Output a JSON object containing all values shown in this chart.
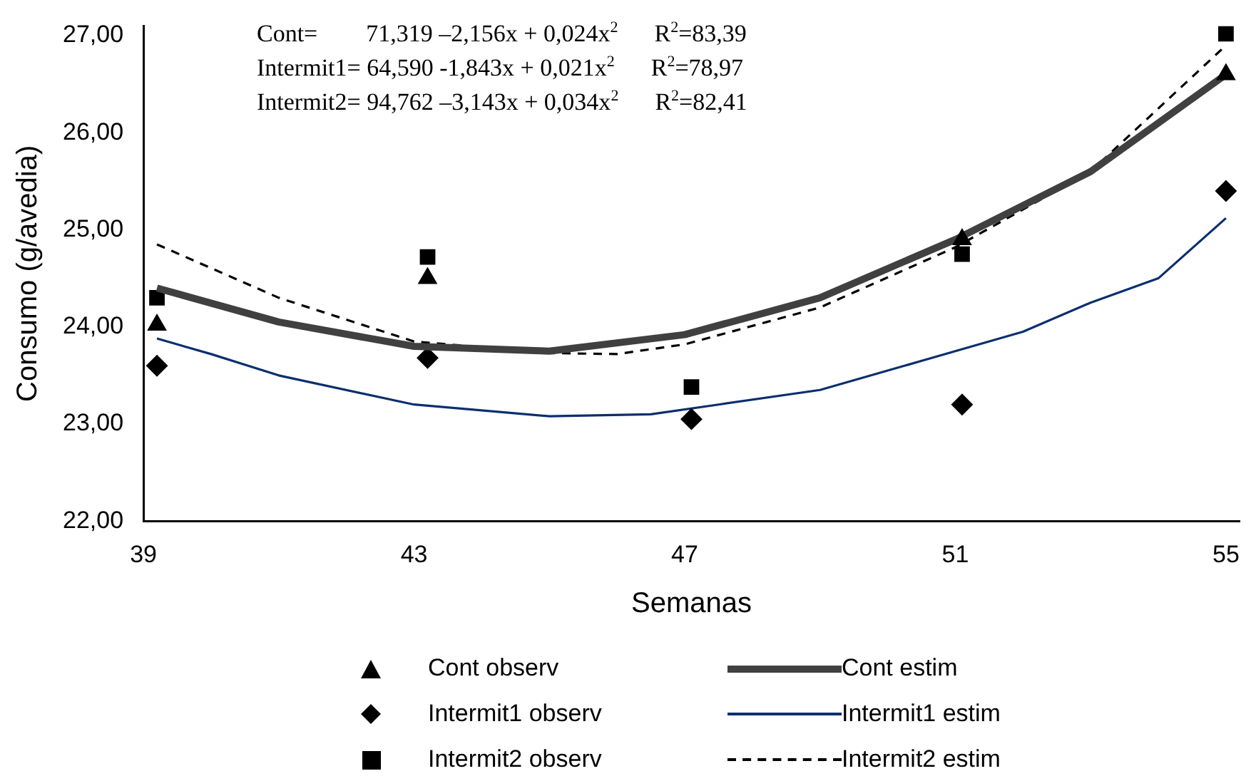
{
  "chart_data": {
    "type": "scatter",
    "xlabel": "Semanas",
    "ylabel": "Consumo (g/avedia)",
    "xlim": [
      39,
      55.2
    ],
    "xticks": [
      39,
      43,
      47,
      51,
      55
    ],
    "ylim": [
      22,
      27.1
    ],
    "yticks": [
      {
        "value": 22,
        "label": "22,00"
      },
      {
        "value": 23,
        "label": "23,00"
      },
      {
        "value": 24,
        "label": "24,00"
      },
      {
        "value": 25,
        "label": "25,00"
      },
      {
        "value": 26,
        "label": "26,00"
      },
      {
        "value": 27,
        "label": "27,00"
      }
    ],
    "grid": false,
    "legend": "bottom",
    "annotations": [
      "Cont=        71,319 –2,156x + 0,024x$^{2}$      R$^{2}$=83,39",
      "Intermit1= 64,590 -1,843x + 0,021x$^{2}$      R$^{2}$=78,97",
      "Intermit2= 94,762 –3,143x + 0,034x$^{2}$      R$^{2}$=82,41"
    ],
    "series": [
      {
        "name": "Cont observ",
        "marker": "triangle",
        "color": "#000000",
        "x": [
          39.2,
          43.2,
          51.1,
          55.0
        ],
        "values": [
          24.02,
          24.5,
          24.9,
          26.6
        ]
      },
      {
        "name": "Cont estim",
        "type": "line",
        "marker": "none",
        "line_style": "solid",
        "color": "#404040",
        "x": [
          39.2,
          41,
          43,
          45,
          47,
          49,
          51,
          53,
          55
        ],
        "values": [
          24.4,
          24.05,
          23.8,
          23.75,
          23.92,
          24.3,
          24.9,
          25.6,
          26.6
        ]
      },
      {
        "name": "Intermit1 observ",
        "marker": "diamond",
        "color": "#000000",
        "x": [
          39.2,
          43.2,
          47.1,
          51.1,
          55.0
        ],
        "values": [
          23.6,
          23.68,
          23.05,
          23.2,
          25.4
        ]
      },
      {
        "name": "Intermit1 estim",
        "type": "line",
        "marker": "none",
        "line_style": "solid",
        "color": "#0b2f6e",
        "x": [
          39.2,
          40,
          41,
          43,
          45,
          46.5,
          47.5,
          49,
          51,
          52,
          53,
          54,
          55
        ],
        "values": [
          23.88,
          23.72,
          23.5,
          23.2,
          23.08,
          23.1,
          23.2,
          23.35,
          23.75,
          23.95,
          24.25,
          24.5,
          25.12
        ]
      },
      {
        "name": "Intermit2 observ",
        "marker": "square",
        "color": "#000000",
        "x": [
          39.2,
          43.2,
          47.1,
          51.1,
          55.0
        ],
        "values": [
          24.3,
          24.72,
          23.38,
          24.75,
          27.02
        ]
      },
      {
        "name": "Intermit2 estim",
        "type": "line",
        "marker": "none",
        "line_style": "dashed",
        "color": "#000000",
        "x": [
          39.2,
          41,
          43,
          45,
          46,
          47,
          49,
          51,
          53,
          55
        ],
        "values": [
          24.85,
          24.3,
          23.85,
          23.73,
          23.72,
          23.82,
          24.2,
          24.82,
          25.6,
          26.9
        ]
      }
    ]
  }
}
